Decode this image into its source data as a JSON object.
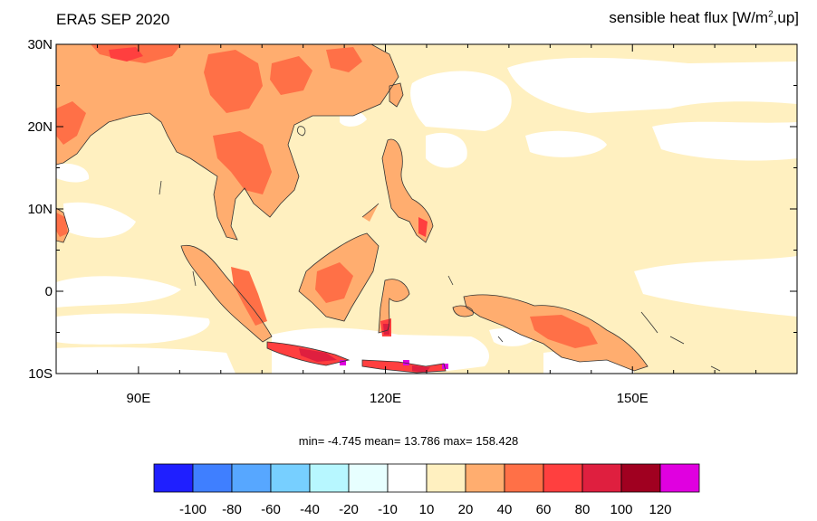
{
  "title_left": "ERA5 SEP 2020",
  "title_right": {
    "prefix": "sensible heat flux [W/m",
    "superscript": "2",
    "suffix": ",up]"
  },
  "stats": {
    "text": "min=  -4.745   mean=  13.786   max= 158.428",
    "min": -4.745,
    "mean": 13.786,
    "max": 158.428
  },
  "axes": {
    "lon_range": [
      80,
      170
    ],
    "lat_range": [
      -10,
      30
    ],
    "x_ticks": [
      {
        "value": 90,
        "label": "90E"
      },
      {
        "value": 120,
        "label": "120E"
      },
      {
        "value": 150,
        "label": "150E"
      }
    ],
    "y_ticks": [
      {
        "value": 30,
        "label": "30N"
      },
      {
        "value": 20,
        "label": "20N"
      },
      {
        "value": 10,
        "label": "10N"
      },
      {
        "value": 0,
        "label": "0"
      },
      {
        "value": -10,
        "label": "10S"
      }
    ]
  },
  "colorbar": {
    "colors": [
      "#1f1fff",
      "#3f7fff",
      "#57a7ff",
      "#77cfff",
      "#b7f7ff",
      "#e7ffff",
      "#ffffff",
      "#fff0c0",
      "#ffad6f",
      "#ff7047",
      "#ff3f3f",
      "#df1f3f",
      "#a00020",
      "#e000e0"
    ],
    "labels": [
      "-100",
      "-80",
      "-60",
      "-40",
      "-20",
      "-10",
      "10",
      "20",
      "40",
      "60",
      "80",
      "100",
      "120"
    ]
  },
  "chart_data": {
    "type": "heatmap",
    "title": "ERA5 SEP 2020",
    "subtitle": "sensible heat flux [W/m2,up]",
    "xlim": [
      80,
      170
    ],
    "ylim": [
      -10,
      30
    ],
    "legend": "bottom",
    "color_levels": [
      -100,
      -80,
      -60,
      -40,
      -20,
      -10,
      10,
      20,
      40,
      60,
      80,
      100,
      120
    ]
  }
}
